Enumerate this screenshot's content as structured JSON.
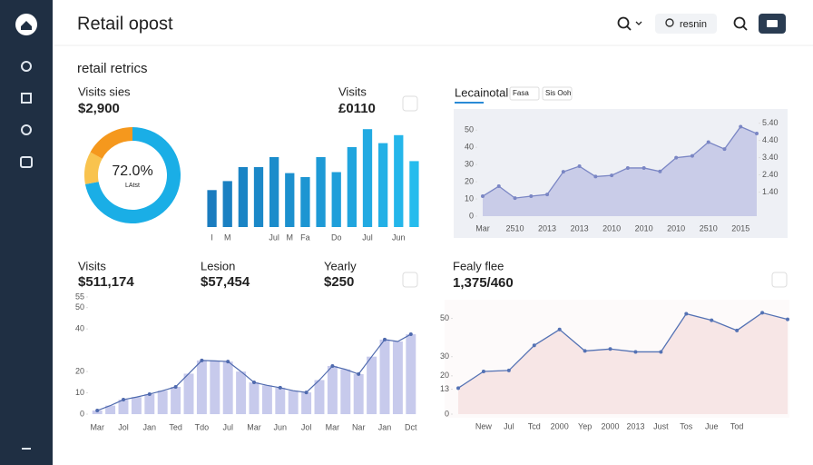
{
  "header": {
    "title": "Retail opost",
    "search_placeholder": "resnin"
  },
  "section_title": "retail retrics",
  "chart_data": [
    {
      "type": "donut",
      "label": "Visits sies",
      "value_text": "$2,900",
      "center_label": "72.0%",
      "center_sublabel": "LAtst",
      "values": [
        72,
        11,
        17
      ],
      "colors": [
        "#1aaee6",
        "#f9c34e",
        "#f5981d"
      ]
    },
    {
      "type": "bar",
      "label": "Visits",
      "value_text": "£0110",
      "categories": [
        "I",
        "M",
        null,
        null,
        "Jul",
        "M",
        "Fa",
        null,
        "Do",
        null,
        "Jul",
        null,
        "Jun",
        null
      ],
      "values": [
        37,
        46,
        60,
        60,
        70,
        54,
        50,
        70,
        55,
        80,
        98,
        84,
        92,
        66
      ],
      "ylim": [
        0,
        100
      ],
      "colors": [
        "#1a7cbf",
        "#1a80c2",
        "#1a84c5",
        "#1b88c8",
        "#1b8ccb",
        "#1c90ce",
        "#1d95d2",
        "#1e9ad6",
        "#1f9fda",
        "#20a5de",
        "#22aae2",
        "#23b0e6",
        "#24b6ea",
        "#25bced"
      ]
    },
    {
      "type": "area",
      "label": "Lecainotal",
      "tabs": [
        "Fasa",
        "Sis Ooh"
      ],
      "categories": [
        "Mar",
        null,
        "2510",
        null,
        "2013",
        null,
        "2013",
        null,
        "2010",
        null,
        "2010",
        null,
        "2010",
        null,
        "2510",
        null,
        "2015",
        null
      ],
      "values": [
        11.6,
        17.4,
        10.5,
        11.6,
        12.6,
        25.8,
        29,
        23,
        23.7,
        28,
        28,
        26,
        34,
        35,
        43,
        39,
        52,
        48
      ],
      "ylim": [
        0,
        57
      ],
      "yticks": [
        0,
        10,
        20,
        30,
        40,
        50
      ],
      "y2lim": [
        0,
        5.7
      ],
      "y2ticks": [
        {
          "value": 1.4,
          "label": "1.40"
        },
        {
          "value": 2.4,
          "label": "2.40"
        },
        {
          "value": 3.4,
          "label": "3.40"
        },
        {
          "value": 4.4,
          "label": "4.40"
        },
        {
          "value": 5.4,
          "label": "5.40"
        }
      ],
      "color": "#7a86c4",
      "fill": "#c9cce8"
    },
    {
      "type": "bar_line",
      "kpis": [
        {
          "label": "Visits",
          "value": "$511,174"
        },
        {
          "label": "Lesion",
          "value": "$57,454"
        },
        {
          "label": "Yearly",
          "value": "$250"
        }
      ],
      "categories": [
        "Mar",
        null,
        "Jol",
        null,
        "Jan",
        null,
        "Ted",
        null,
        "Tdo",
        null,
        "Jul",
        null,
        "Mar",
        null,
        "Jun",
        null,
        "Jol",
        null,
        "Mar",
        null,
        "Nar",
        null,
        "Jan",
        null,
        "Dct"
      ],
      "values": [
        1.7,
        4,
        6.8,
        8,
        9.4,
        11,
        12.8,
        19,
        25.2,
        25,
        24.7,
        20,
        14.9,
        13.5,
        12.4,
        11,
        10.2,
        16,
        22.6,
        21,
        18.8,
        27,
        35,
        34.1,
        37.5
      ],
      "ylim": [
        0,
        55
      ],
      "yticks": [
        0,
        10,
        20,
        40,
        50,
        55
      ],
      "color": "#c7caec",
      "line_color": "#4f6aae"
    },
    {
      "type": "area",
      "label": "Fealy flee",
      "value_text": "1,375/460",
      "categories": [
        null,
        "New",
        "Jul",
        "Tcd",
        "2000",
        "Yep",
        "2000",
        "2013",
        "Just",
        "Tos",
        "Jue",
        "Tod",
        null,
        null
      ],
      "values": [
        13.6,
        22.3,
        22.8,
        35.9,
        44.2,
        33,
        34,
        32.5,
        32.5,
        52.4,
        49,
        43.7,
        52.9,
        49.5
      ],
      "ylim": [
        0,
        55
      ],
      "yticks": [
        0,
        13,
        20,
        30,
        50
      ],
      "color": "#5472b4",
      "fill": "#f7e6e6"
    }
  ]
}
